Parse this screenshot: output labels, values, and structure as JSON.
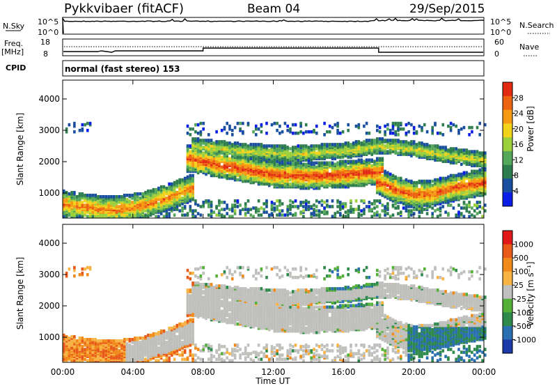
{
  "header": {
    "title": "Pykkvibaer (fitACF)",
    "beam": "Beam 04",
    "date": "29/Sep/2015",
    "cpid_label": "CPID",
    "cpid_value": "normal (fast stereo) 153"
  },
  "small_panels": {
    "nsky_label": "N.Sky",
    "nsky_ticks": [
      "10^5",
      "10^0"
    ],
    "nsearch_label": "N.Search",
    "nsearch_ticks": [
      "10^5",
      "10^0"
    ],
    "freq_label_line1": "Freq.",
    "freq_label_line2": "[MHz]",
    "freq_ticks": [
      "18",
      "8"
    ],
    "nave_label": "Nave",
    "nave_ticks": [
      "60",
      "0"
    ]
  },
  "chart_data": [
    {
      "type": "heatmap",
      "name": "power",
      "xlabel": "Time UT",
      "ylabel": "Slant Range [km]",
      "x_ticks": [
        "00:00",
        "04:00",
        "08:00",
        "12:00",
        "16:00",
        "20:00",
        "00:00"
      ],
      "y_ticks": [
        "1000",
        "2000",
        "3000",
        "4000"
      ],
      "ylim": [
        200,
        4600
      ],
      "colorbar": {
        "label": "Power [dB]",
        "ticks": [
          "4",
          "8",
          "12",
          "16",
          "20",
          "24",
          "28"
        ],
        "colors": [
          "#0a1ee8",
          "#1a4fa0",
          "#2e7d4e",
          "#55a85a",
          "#9ccf3c",
          "#f2d21b",
          "#f59a12",
          "#ec6312",
          "#e32a12"
        ]
      },
      "bands": [
        {
          "t": [
            0,
            1.5,
            3,
            4.5,
            6,
            7.2
          ],
          "center": [
            600,
            480,
            420,
            560,
            820,
            1100
          ],
          "width": 260,
          "level": 0.7
        },
        {
          "t": [
            7.2,
            9,
            12,
            14,
            16,
            18
          ],
          "center": [
            2050,
            1850,
            1550,
            1500,
            1550,
            1650
          ],
          "width": 260,
          "level": 0.85
        },
        {
          "t": [
            18,
            19,
            20,
            21,
            22.5,
            24
          ],
          "center": [
            1300,
            1050,
            900,
            950,
            1150,
            1300
          ],
          "width": 260,
          "level": 0.8
        },
        {
          "t": [
            7.5,
            10,
            13,
            16,
            18,
            20,
            22,
            24
          ],
          "center": [
            2450,
            2300,
            2200,
            2300,
            2450,
            2350,
            2150,
            2000
          ],
          "width": 150,
          "level": 0.45
        }
      ]
    },
    {
      "type": "heatmap",
      "name": "velocity",
      "xlabel": "Time UT",
      "ylabel": "Slant Range [km]",
      "x_ticks": [
        "00:00",
        "04:00",
        "08:00",
        "12:00",
        "16:00",
        "20:00",
        "00:00"
      ],
      "y_ticks": [
        "1000",
        "2000",
        "3000",
        "4000"
      ],
      "ylim": [
        200,
        4600
      ],
      "colorbar": {
        "label": "Velocity [m s⁻¹]",
        "ticks": [
          "1000",
          "500",
          "100",
          "25",
          "-25",
          "-100",
          "-500",
          "-1000"
        ],
        "colors": [
          "#1b3aa8",
          "#2a6fb0",
          "#2e8a4a",
          "#55b03a",
          "#c0c0c0",
          "#f7b445",
          "#f08a1a",
          "#e85a1a",
          "#e01818"
        ]
      },
      "ground_scatter_color": "#bfbfbc"
    }
  ]
}
